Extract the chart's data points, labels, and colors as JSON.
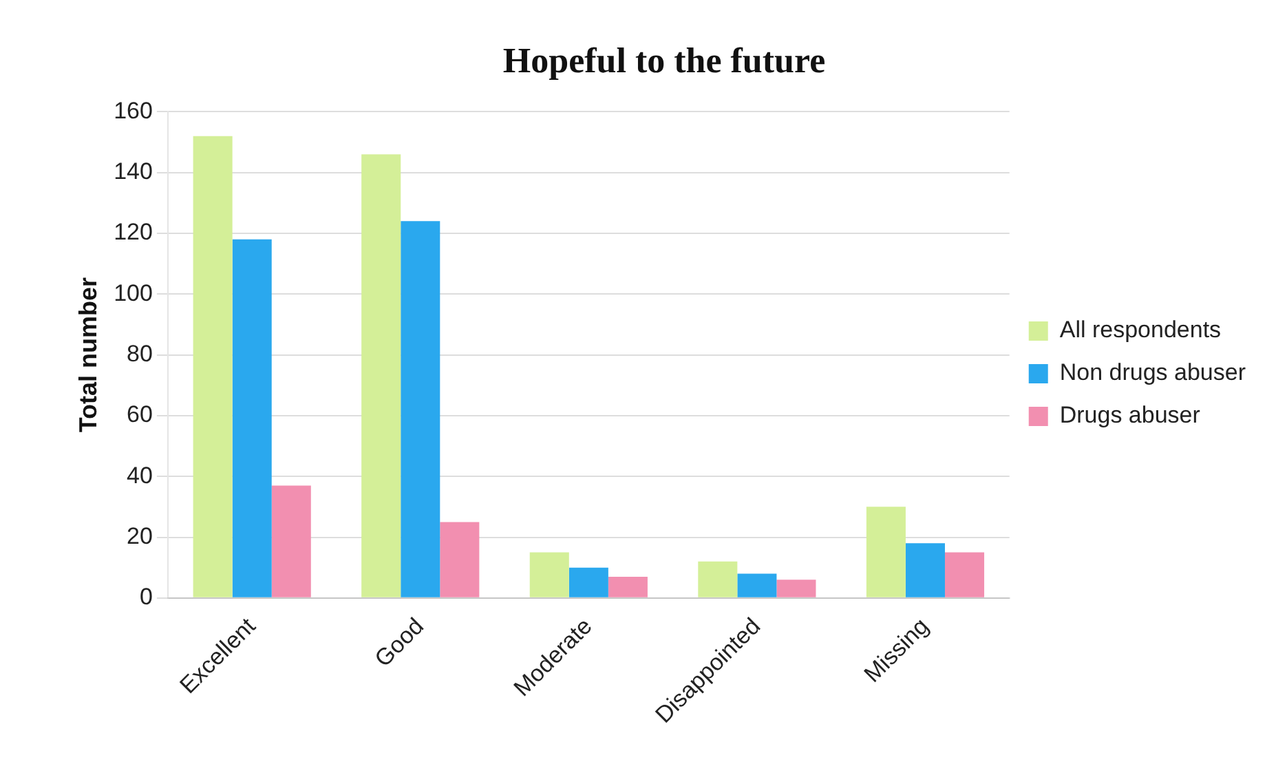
{
  "chart_data": {
    "type": "bar",
    "title": "Hopeful to the future",
    "ylabel": "Total number",
    "categories": [
      "Excellent",
      "Good",
      "Moderate",
      "Disappointed",
      "Missing"
    ],
    "series": [
      {
        "name": "All respondents",
        "color": "#d4ef98",
        "values": [
          152,
          146,
          15,
          12,
          30
        ]
      },
      {
        "name": "Non drugs abuser",
        "color": "#2aa8ee",
        "values": [
          118,
          124,
          10,
          8,
          18
        ]
      },
      {
        "name": "Drugs abuser",
        "color": "#f28fb0",
        "values": [
          37,
          25,
          7,
          6,
          15
        ]
      }
    ],
    "ylim": [
      0,
      160
    ],
    "yticks": [
      0,
      20,
      40,
      60,
      80,
      100,
      120,
      140,
      160
    ],
    "grid": "y",
    "legend": "right"
  }
}
